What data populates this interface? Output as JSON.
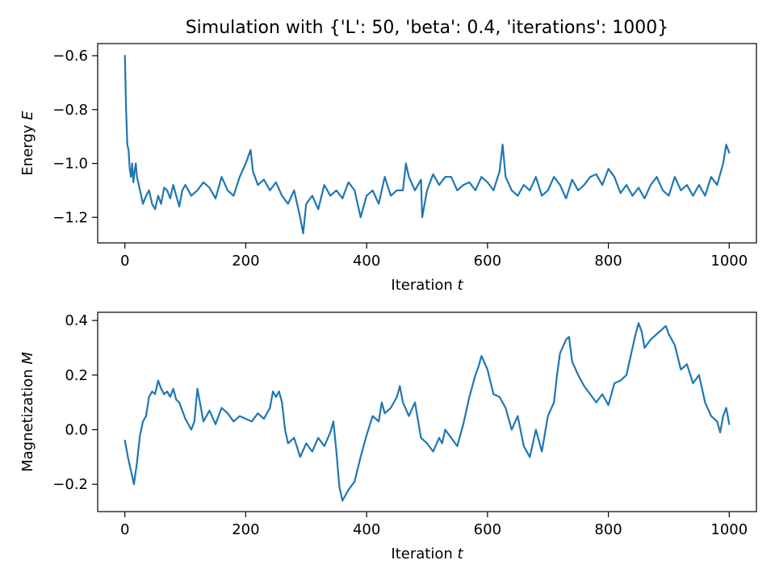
{
  "figure_title": "Simulation with {'L': 50, 'beta': 0.4, 'iterations': 1000}",
  "chart_data": [
    {
      "type": "line",
      "title": "Simulation with {'L': 50, 'beta': 0.4, 'iterations': 1000}",
      "xlabel": "Iteration t",
      "ylabel": "Energy E",
      "xlim": [
        -45,
        1045
      ],
      "ylim": [
        -1.295,
        -0.555
      ],
      "xticks": [
        0,
        200,
        400,
        600,
        800,
        1000
      ],
      "xtick_labels": [
        "0",
        "200",
        "400",
        "600",
        "800",
        "1000"
      ],
      "yticks": [
        -0.6,
        -0.8,
        -1.0,
        -1.2
      ],
      "ytick_labels": [
        "−0.6",
        "−0.8",
        "−1.0",
        "−1.2"
      ],
      "grid": false,
      "color": "#1f77b4",
      "series": [
        {
          "x": [
            0,
            2,
            4,
            6,
            8,
            10,
            12,
            14,
            16,
            18,
            20,
            25,
            30,
            35,
            40,
            45,
            50,
            55,
            60,
            65,
            70,
            75,
            80,
            85,
            90,
            95,
            100,
            110,
            120,
            130,
            140,
            150,
            160,
            170,
            180,
            190,
            200,
            208,
            212,
            220,
            230,
            240,
            250,
            260,
            270,
            280,
            290,
            295,
            300,
            310,
            320,
            330,
            340,
            350,
            360,
            370,
            380,
            390,
            400,
            410,
            420,
            430,
            440,
            450,
            460,
            465,
            470,
            480,
            490,
            492,
            500,
            510,
            520,
            530,
            540,
            550,
            560,
            570,
            580,
            590,
            600,
            610,
            620,
            625,
            630,
            640,
            650,
            660,
            670,
            680,
            690,
            700,
            710,
            720,
            730,
            740,
            750,
            760,
            770,
            780,
            790,
            800,
            810,
            820,
            830,
            840,
            850,
            860,
            870,
            880,
            890,
            900,
            910,
            920,
            930,
            940,
            950,
            960,
            970,
            980,
            990,
            995,
            1000
          ],
          "y": [
            -0.6,
            -0.8,
            -0.93,
            -0.95,
            -1.02,
            -1.05,
            -1.0,
            -1.07,
            -1.03,
            -1.0,
            -1.05,
            -1.1,
            -1.15,
            -1.12,
            -1.1,
            -1.15,
            -1.17,
            -1.12,
            -1.15,
            -1.09,
            -1.1,
            -1.13,
            -1.08,
            -1.12,
            -1.16,
            -1.1,
            -1.08,
            -1.12,
            -1.1,
            -1.07,
            -1.09,
            -1.13,
            -1.05,
            -1.1,
            -1.12,
            -1.05,
            -1.0,
            -0.95,
            -1.03,
            -1.08,
            -1.06,
            -1.1,
            -1.07,
            -1.12,
            -1.15,
            -1.1,
            -1.2,
            -1.26,
            -1.15,
            -1.12,
            -1.17,
            -1.08,
            -1.12,
            -1.1,
            -1.13,
            -1.07,
            -1.1,
            -1.2,
            -1.12,
            -1.1,
            -1.15,
            -1.05,
            -1.12,
            -1.1,
            -1.1,
            -1.0,
            -1.05,
            -1.1,
            -1.06,
            -1.2,
            -1.1,
            -1.04,
            -1.08,
            -1.05,
            -1.05,
            -1.1,
            -1.08,
            -1.07,
            -1.1,
            -1.05,
            -1.07,
            -1.1,
            -1.03,
            -0.93,
            -1.05,
            -1.1,
            -1.12,
            -1.08,
            -1.1,
            -1.05,
            -1.12,
            -1.1,
            -1.05,
            -1.08,
            -1.13,
            -1.06,
            -1.1,
            -1.08,
            -1.05,
            -1.04,
            -1.08,
            -1.02,
            -1.05,
            -1.11,
            -1.08,
            -1.12,
            -1.09,
            -1.13,
            -1.08,
            -1.05,
            -1.1,
            -1.12,
            -1.05,
            -1.1,
            -1.08,
            -1.12,
            -1.08,
            -1.12,
            -1.05,
            -1.08,
            -1.0,
            -0.93,
            -0.96
          ]
        }
      ]
    },
    {
      "type": "line",
      "title": "",
      "xlabel": "Iteration t",
      "ylabel": "Magnetization M",
      "xlim": [
        -45,
        1045
      ],
      "ylim": [
        -0.3,
        0.43
      ],
      "xticks": [
        0,
        200,
        400,
        600,
        800,
        1000
      ],
      "xtick_labels": [
        "0",
        "200",
        "400",
        "600",
        "800",
        "1000"
      ],
      "yticks": [
        0.4,
        0.2,
        0.0,
        -0.2
      ],
      "ytick_labels": [
        "0.4",
        "0.2",
        "0.0",
        "−0.2"
      ],
      "grid": false,
      "color": "#1f77b4",
      "series": [
        {
          "x": [
            0,
            5,
            10,
            15,
            20,
            25,
            30,
            35,
            40,
            45,
            50,
            55,
            60,
            65,
            70,
            75,
            80,
            85,
            90,
            95,
            100,
            110,
            115,
            120,
            130,
            140,
            150,
            160,
            170,
            180,
            190,
            200,
            210,
            220,
            230,
            240,
            245,
            250,
            255,
            260,
            265,
            270,
            280,
            290,
            300,
            310,
            320,
            330,
            340,
            345,
            350,
            355,
            360,
            370,
            380,
            390,
            400,
            410,
            420,
            425,
            430,
            440,
            450,
            455,
            460,
            470,
            480,
            490,
            500,
            510,
            520,
            525,
            530,
            540,
            550,
            560,
            570,
            580,
            585,
            590,
            600,
            610,
            620,
            630,
            640,
            650,
            660,
            670,
            680,
            690,
            700,
            710,
            715,
            720,
            730,
            735,
            740,
            750,
            760,
            770,
            780,
            790,
            800,
            810,
            820,
            830,
            840,
            845,
            850,
            855,
            860,
            870,
            880,
            890,
            895,
            900,
            910,
            920,
            930,
            940,
            950,
            960,
            970,
            980,
            985,
            990,
            995,
            1000
          ],
          "y": [
            -0.04,
            -0.1,
            -0.15,
            -0.2,
            -0.12,
            -0.02,
            0.03,
            0.05,
            0.12,
            0.14,
            0.13,
            0.18,
            0.15,
            0.13,
            0.14,
            0.12,
            0.15,
            0.11,
            0.1,
            0.07,
            0.04,
            0.0,
            0.03,
            0.15,
            0.03,
            0.07,
            0.02,
            0.08,
            0.06,
            0.03,
            0.05,
            0.04,
            0.03,
            0.06,
            0.04,
            0.08,
            0.14,
            0.12,
            0.14,
            0.1,
            0.0,
            -0.05,
            -0.03,
            -0.1,
            -0.05,
            -0.08,
            -0.03,
            -0.06,
            -0.01,
            0.03,
            -0.08,
            -0.21,
            -0.26,
            -0.22,
            -0.19,
            -0.1,
            -0.02,
            0.05,
            0.03,
            0.1,
            0.06,
            0.08,
            0.12,
            0.16,
            0.1,
            0.05,
            0.1,
            -0.03,
            -0.05,
            -0.08,
            -0.03,
            -0.05,
            0.0,
            -0.03,
            -0.06,
            0.02,
            0.12,
            0.2,
            0.23,
            0.27,
            0.22,
            0.13,
            0.12,
            0.08,
            0.0,
            0.05,
            -0.06,
            -0.1,
            0.0,
            -0.08,
            0.05,
            0.1,
            0.2,
            0.28,
            0.33,
            0.34,
            0.25,
            0.2,
            0.16,
            0.13,
            0.1,
            0.13,
            0.09,
            0.17,
            0.18,
            0.2,
            0.3,
            0.35,
            0.39,
            0.36,
            0.3,
            0.33,
            0.35,
            0.37,
            0.38,
            0.35,
            0.31,
            0.22,
            0.24,
            0.17,
            0.2,
            0.1,
            0.05,
            0.03,
            -0.01,
            0.05,
            0.08,
            0.02
          ]
        }
      ]
    }
  ]
}
